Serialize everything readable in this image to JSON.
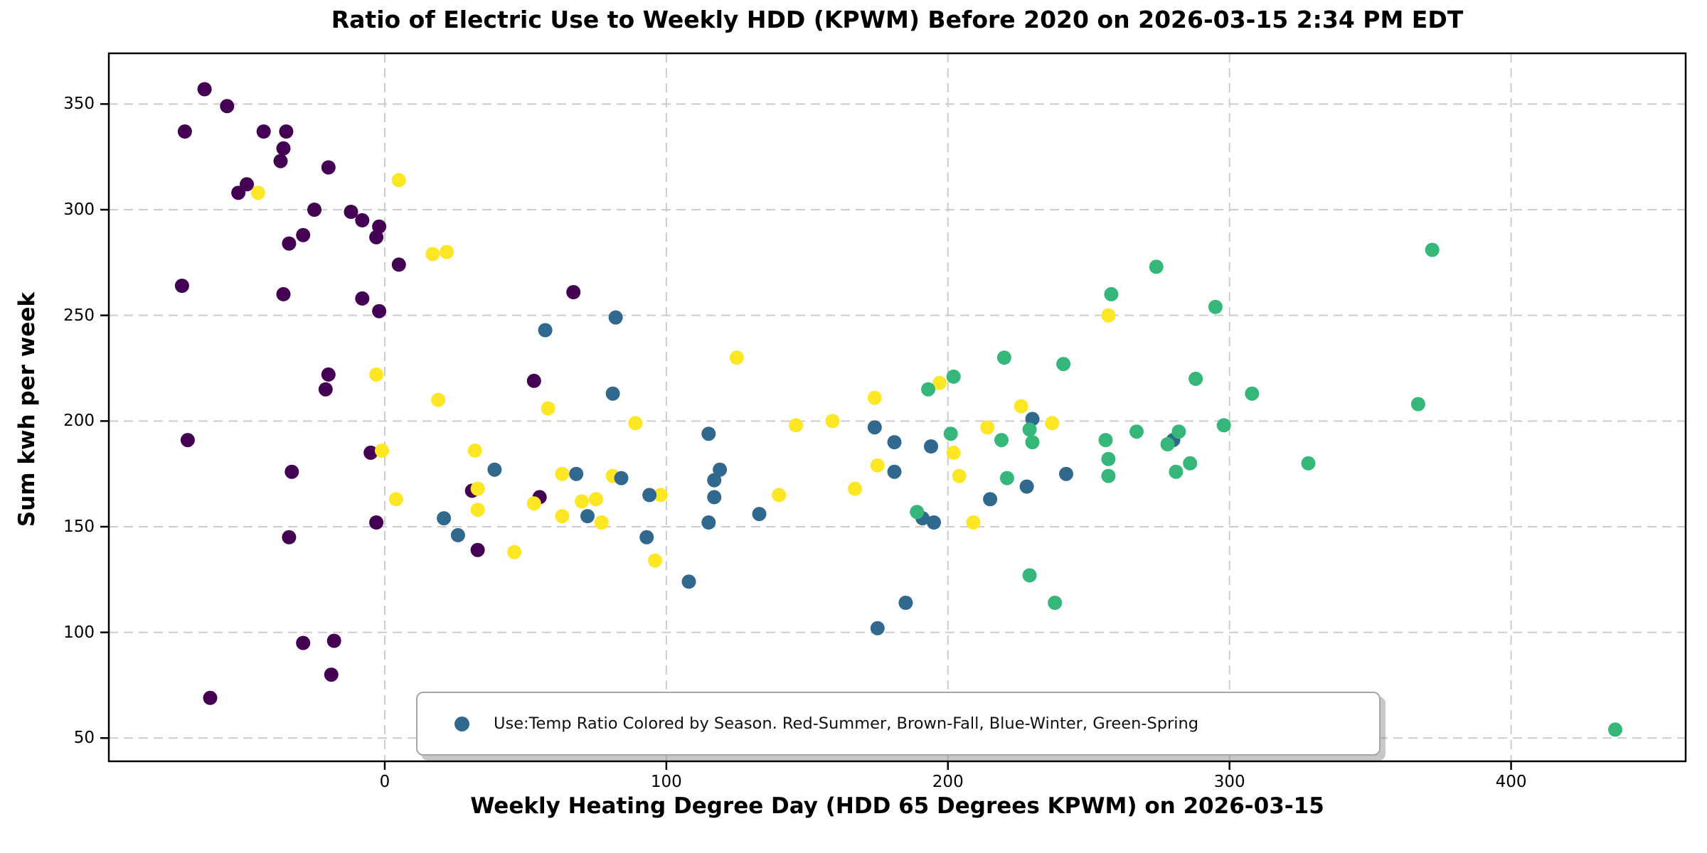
{
  "title": "Ratio of Electric Use to Weekly HDD (KPWM) Before 2020 on 2026-03-15 2:34 PM EDT",
  "xlabel": "Weekly Heating Degree Day (HDD 65 Degrees KPWM) on 2026-03-15",
  "ylabel": "Sum kwh per week",
  "legend": {
    "label": "Use:Temp Ratio Colored by Season. Red-Summer, Brown-Fall, Blue-Winter, Green-Spring",
    "marker_color": "#31688e"
  },
  "colors": {
    "fall_purple": "#440154",
    "winter_blue": "#31688e",
    "spring_green": "#35b779",
    "summer_yellow": "#fde725",
    "grid": "#cccccc",
    "axis": "#000000"
  },
  "chart_data": {
    "type": "scatter",
    "title": "Ratio of Electric Use to Weekly HDD (KPWM) Before 2020 on 2026-03-15 2:34 PM EDT",
    "xlabel": "Weekly Heating Degree Day (HDD 65 Degrees KPWM) on 2026-03-15",
    "ylabel": "Sum kwh per week",
    "xlim": [
      -98,
      462
    ],
    "ylim": [
      39,
      374
    ],
    "x_ticks": [
      0,
      100,
      200,
      300,
      400
    ],
    "y_ticks": [
      50,
      100,
      150,
      200,
      250,
      300,
      350
    ],
    "grid": "dashed",
    "legend_position": "lower center",
    "marker_radius_px": 10,
    "series": [
      {
        "name": "fall",
        "color": "#440154",
        "points": [
          [
            -64,
            357
          ],
          [
            -56,
            349
          ],
          [
            -71,
            337
          ],
          [
            -43,
            337
          ],
          [
            -35,
            337
          ],
          [
            -36,
            329
          ],
          [
            -37,
            323
          ],
          [
            -20,
            320
          ],
          [
            -49,
            312
          ],
          [
            -52,
            308
          ],
          [
            -25,
            300
          ],
          [
            -12,
            299
          ],
          [
            -8,
            295
          ],
          [
            -2,
            292
          ],
          [
            -3,
            287
          ],
          [
            -29,
            288
          ],
          [
            -34,
            284
          ],
          [
            5,
            274
          ],
          [
            -72,
            264
          ],
          [
            -36,
            260
          ],
          [
            -8,
            258
          ],
          [
            -2,
            252
          ],
          [
            -20,
            222
          ],
          [
            -21,
            215
          ],
          [
            -70,
            191
          ],
          [
            -5,
            185
          ],
          [
            -33,
            176
          ],
          [
            31,
            167
          ],
          [
            -3,
            152
          ],
          [
            -34,
            145
          ],
          [
            33,
            139
          ],
          [
            -29,
            95
          ],
          [
            -18,
            96
          ],
          [
            -19,
            80
          ],
          [
            -62,
            69
          ],
          [
            67,
            261
          ],
          [
            53,
            219
          ],
          [
            55,
            164
          ]
        ]
      },
      {
        "name": "summer",
        "color": "#fde725",
        "points": [
          [
            5,
            314
          ],
          [
            -45,
            308
          ],
          [
            17,
            279
          ],
          [
            22,
            280
          ],
          [
            -3,
            222
          ],
          [
            19,
            210
          ],
          [
            -1,
            186
          ],
          [
            32,
            186
          ],
          [
            4,
            163
          ],
          [
            33,
            168
          ],
          [
            33,
            158
          ],
          [
            46,
            138
          ],
          [
            96,
            134
          ],
          [
            63,
            175
          ],
          [
            81,
            174
          ],
          [
            53,
            161
          ],
          [
            70,
            162
          ],
          [
            75,
            163
          ],
          [
            63,
            155
          ],
          [
            77,
            152
          ],
          [
            98,
            165
          ],
          [
            58,
            206
          ],
          [
            89,
            199
          ],
          [
            125,
            230
          ],
          [
            146,
            198
          ],
          [
            159,
            200
          ],
          [
            174,
            211
          ],
          [
            175,
            179
          ],
          [
            140,
            165
          ],
          [
            167,
            168
          ],
          [
            197,
            218
          ],
          [
            214,
            197
          ],
          [
            226,
            207
          ],
          [
            237,
            199
          ],
          [
            202,
            185
          ],
          [
            204,
            174
          ],
          [
            209,
            152
          ],
          [
            257,
            250
          ]
        ]
      },
      {
        "name": "winter",
        "color": "#31688e",
        "points": [
          [
            82,
            249
          ],
          [
            57,
            243
          ],
          [
            81,
            213
          ],
          [
            115,
            194
          ],
          [
            39,
            177
          ],
          [
            119,
            177
          ],
          [
            117,
            172
          ],
          [
            117,
            164
          ],
          [
            94,
            165
          ],
          [
            68,
            175
          ],
          [
            84,
            173
          ],
          [
            72,
            155
          ],
          [
            115,
            152
          ],
          [
            133,
            156
          ],
          [
            21,
            154
          ],
          [
            26,
            146
          ],
          [
            93,
            145
          ],
          [
            108,
            124
          ],
          [
            175,
            102
          ],
          [
            185,
            114
          ],
          [
            174,
            197
          ],
          [
            181,
            190
          ],
          [
            181,
            176
          ],
          [
            194,
            188
          ],
          [
            230,
            201
          ],
          [
            242,
            175
          ],
          [
            228,
            169
          ],
          [
            215,
            163
          ],
          [
            191,
            154
          ],
          [
            195,
            152
          ],
          [
            280,
            191
          ]
        ]
      },
      {
        "name": "spring",
        "color": "#35b779",
        "points": [
          [
            372,
            281
          ],
          [
            274,
            273
          ],
          [
            295,
            254
          ],
          [
            258,
            260
          ],
          [
            220,
            230
          ],
          [
            241,
            227
          ],
          [
            202,
            221
          ],
          [
            193,
            215
          ],
          [
            288,
            220
          ],
          [
            308,
            213
          ],
          [
            229,
            196
          ],
          [
            230,
            190
          ],
          [
            201,
            194
          ],
          [
            219,
            191
          ],
          [
            256,
            191
          ],
          [
            257,
            182
          ],
          [
            257,
            174
          ],
          [
            267,
            195
          ],
          [
            278,
            189
          ],
          [
            282,
            195
          ],
          [
            286,
            180
          ],
          [
            281,
            176
          ],
          [
            221,
            173
          ],
          [
            189,
            157
          ],
          [
            298,
            198
          ],
          [
            367,
            208
          ],
          [
            328,
            180
          ],
          [
            229,
            127
          ],
          [
            238,
            114
          ],
          [
            437,
            54
          ]
        ]
      }
    ]
  }
}
